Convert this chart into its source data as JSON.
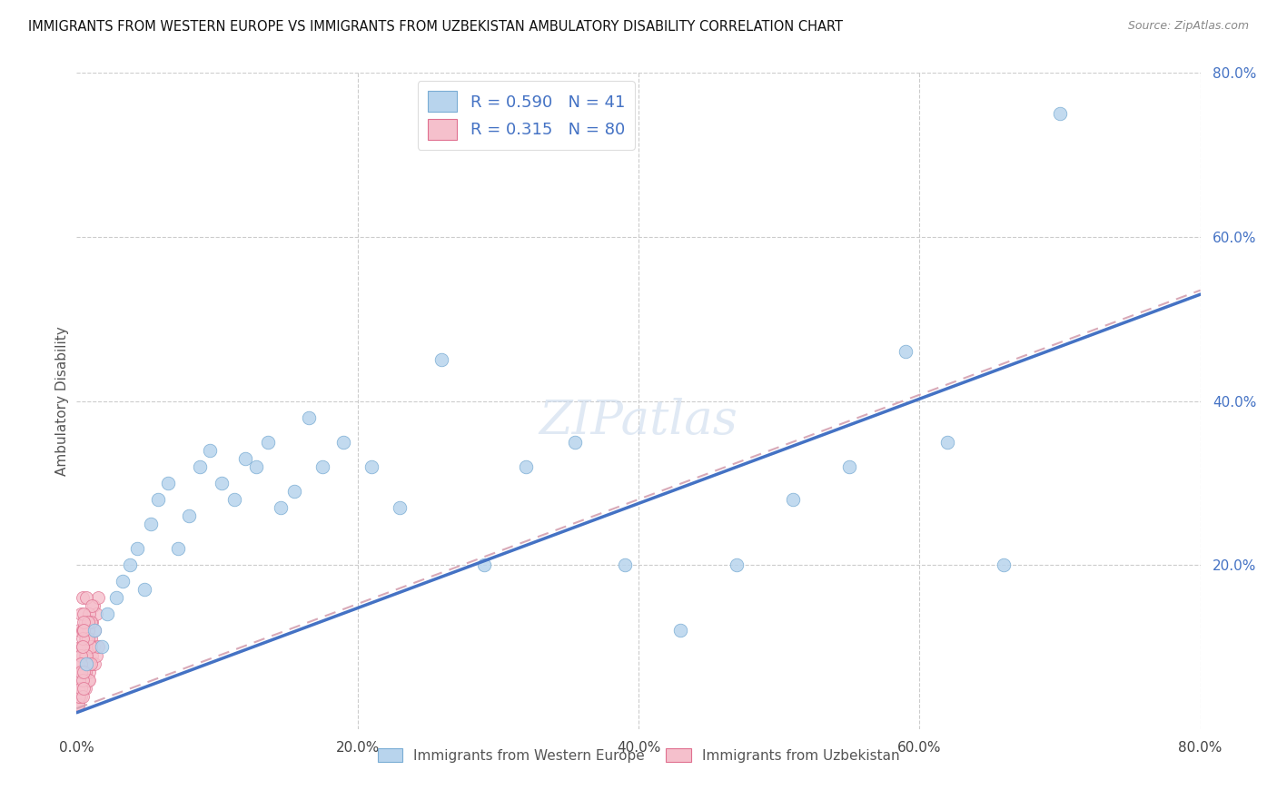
{
  "title": "IMMIGRANTS FROM WESTERN EUROPE VS IMMIGRANTS FROM UZBEKISTAN AMBULATORY DISABILITY CORRELATION CHART",
  "source": "Source: ZipAtlas.com",
  "ylabel": "Ambulatory Disability",
  "xlim": [
    0.0,
    0.8
  ],
  "ylim": [
    0.0,
    0.8
  ],
  "xtick_values": [
    0.0,
    0.2,
    0.4,
    0.6,
    0.8
  ],
  "ytick_values": [
    0.2,
    0.4,
    0.6,
    0.8
  ],
  "background_color": "#ffffff",
  "grid_color": "#cccccc",
  "western_europe_color": "#b8d4ed",
  "western_europe_edge": "#7aadd4",
  "uzbekistan_color": "#f5c0cc",
  "uzbekistan_edge": "#e07090",
  "line_blue": "#4472c4",
  "line_pink_dashed": "#d4a0b0",
  "R_western": 0.59,
  "N_western": 41,
  "R_uzbekistan": 0.315,
  "N_uzbekistan": 80,
  "legend_label_western": "Immigrants from Western Europe",
  "legend_label_uzbekistan": "Immigrants from Uzbekistan",
  "line_we_x0": 0.0,
  "line_we_y0": 0.02,
  "line_we_x1": 0.8,
  "line_we_y1": 0.53,
  "line_uz_x0": 0.0,
  "line_uz_y0": 0.025,
  "line_uz_x1": 0.8,
  "line_uz_y1": 0.535,
  "western_europe_x": [
    0.007,
    0.013,
    0.018,
    0.022,
    0.028,
    0.033,
    0.038,
    0.043,
    0.048,
    0.053,
    0.058,
    0.065,
    0.072,
    0.08,
    0.088,
    0.095,
    0.103,
    0.112,
    0.12,
    0.128,
    0.136,
    0.145,
    0.155,
    0.165,
    0.175,
    0.19,
    0.21,
    0.23,
    0.26,
    0.29,
    0.32,
    0.355,
    0.39,
    0.43,
    0.47,
    0.51,
    0.55,
    0.59,
    0.62,
    0.66,
    0.7
  ],
  "western_europe_y": [
    0.08,
    0.12,
    0.1,
    0.14,
    0.16,
    0.18,
    0.2,
    0.22,
    0.17,
    0.25,
    0.28,
    0.3,
    0.22,
    0.26,
    0.32,
    0.34,
    0.3,
    0.28,
    0.33,
    0.32,
    0.35,
    0.27,
    0.29,
    0.38,
    0.32,
    0.35,
    0.32,
    0.27,
    0.45,
    0.2,
    0.32,
    0.35,
    0.2,
    0.12,
    0.2,
    0.28,
    0.32,
    0.46,
    0.35,
    0.2,
    0.75
  ],
  "uzbekistan_x": [
    0.001,
    0.002,
    0.002,
    0.003,
    0.003,
    0.004,
    0.004,
    0.005,
    0.005,
    0.006,
    0.006,
    0.007,
    0.007,
    0.008,
    0.008,
    0.008,
    0.009,
    0.009,
    0.01,
    0.01,
    0.011,
    0.011,
    0.012,
    0.012,
    0.013,
    0.013,
    0.014,
    0.014,
    0.015,
    0.015,
    0.002,
    0.003,
    0.004,
    0.005,
    0.006,
    0.007,
    0.008,
    0.009,
    0.01,
    0.011,
    0.001,
    0.002,
    0.003,
    0.004,
    0.005,
    0.006,
    0.007,
    0.008,
    0.009,
    0.01,
    0.001,
    0.002,
    0.003,
    0.004,
    0.005,
    0.006,
    0.007,
    0.008,
    0.009,
    0.01,
    0.001,
    0.002,
    0.003,
    0.004,
    0.005,
    0.001,
    0.002,
    0.003,
    0.004,
    0.005,
    0.001,
    0.001,
    0.002,
    0.002,
    0.003,
    0.003,
    0.004,
    0.004,
    0.005,
    0.005
  ],
  "uzbekistan_y": [
    0.03,
    0.05,
    0.07,
    0.04,
    0.08,
    0.06,
    0.09,
    0.07,
    0.1,
    0.05,
    0.11,
    0.08,
    0.09,
    0.06,
    0.1,
    0.12,
    0.07,
    0.13,
    0.08,
    0.11,
    0.09,
    0.13,
    0.1,
    0.15,
    0.08,
    0.12,
    0.09,
    0.14,
    0.1,
    0.16,
    0.12,
    0.14,
    0.16,
    0.1,
    0.13,
    0.16,
    0.12,
    0.14,
    0.13,
    0.15,
    0.06,
    0.08,
    0.1,
    0.12,
    0.14,
    0.09,
    0.11,
    0.13,
    0.08,
    0.1,
    0.04,
    0.06,
    0.08,
    0.1,
    0.12,
    0.07,
    0.09,
    0.11,
    0.06,
    0.08,
    0.05,
    0.07,
    0.09,
    0.11,
    0.13,
    0.04,
    0.06,
    0.08,
    0.1,
    0.12,
    0.03,
    0.05,
    0.04,
    0.06,
    0.05,
    0.07,
    0.04,
    0.06,
    0.05,
    0.07
  ]
}
